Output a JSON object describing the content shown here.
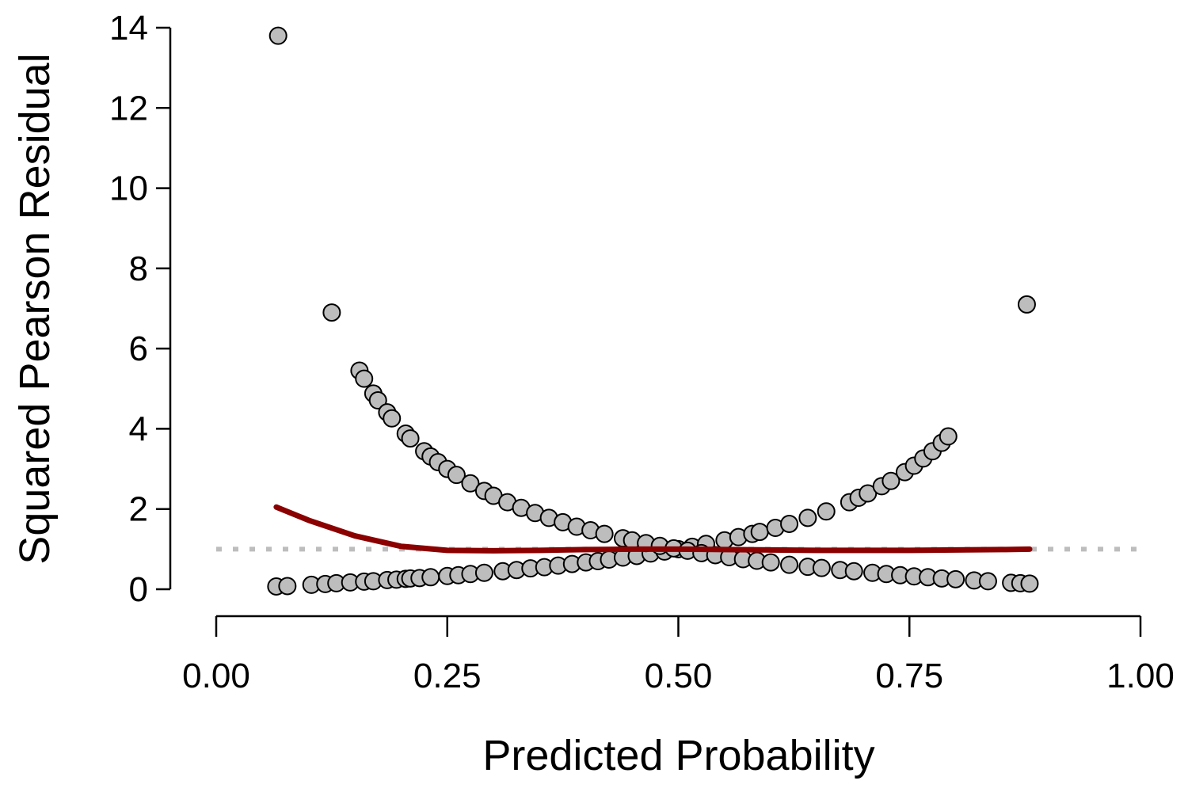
{
  "chart_data": {
    "type": "scatter",
    "xlabel": "Predicted Probability",
    "ylabel": "Squared Pearson Residual",
    "xlim": [
      0,
      1
    ],
    "ylim": [
      0,
      14
    ],
    "x_ticks": [
      "0.00",
      "0.25",
      "0.50",
      "0.75",
      "1.00"
    ],
    "y_ticks": [
      "0",
      "2",
      "4",
      "6",
      "8",
      "10",
      "12",
      "14"
    ],
    "grid": false,
    "reference_line": {
      "y": 1,
      "style": "dotted",
      "color": "#bdbdbd"
    },
    "colors": {
      "point_fill": "#bdbdbd",
      "point_stroke": "#000000",
      "smooth_line": "#8b0000",
      "reference_line": "#bdbdbd"
    },
    "series": [
      {
        "points": [
          [
            0.065,
            0.07
          ],
          [
            0.077,
            0.08
          ],
          [
            0.103,
            0.11
          ],
          [
            0.118,
            0.13
          ],
          [
            0.13,
            0.15
          ],
          [
            0.145,
            0.17
          ],
          [
            0.16,
            0.19
          ],
          [
            0.17,
            0.2
          ],
          [
            0.185,
            0.23
          ],
          [
            0.195,
            0.24
          ],
          [
            0.205,
            0.26
          ],
          [
            0.21,
            0.27
          ],
          [
            0.22,
            0.28
          ],
          [
            0.232,
            0.3
          ],
          [
            0.25,
            0.33
          ],
          [
            0.262,
            0.35
          ],
          [
            0.275,
            0.38
          ],
          [
            0.29,
            0.41
          ],
          [
            0.31,
            0.45
          ],
          [
            0.325,
            0.48
          ],
          [
            0.34,
            0.52
          ],
          [
            0.355,
            0.55
          ],
          [
            0.37,
            0.59
          ],
          [
            0.385,
            0.63
          ],
          [
            0.4,
            0.67
          ],
          [
            0.413,
            0.7
          ],
          [
            0.425,
            0.74
          ],
          [
            0.44,
            0.79
          ],
          [
            0.455,
            0.83
          ],
          [
            0.47,
            0.89
          ],
          [
            0.485,
            0.94
          ],
          [
            0.5,
            1.0
          ],
          [
            0.515,
            1.06
          ],
          [
            0.53,
            1.13
          ],
          [
            0.55,
            1.22
          ],
          [
            0.565,
            1.3
          ],
          [
            0.58,
            1.38
          ],
          [
            0.588,
            1.43
          ],
          [
            0.605,
            1.53
          ],
          [
            0.62,
            1.63
          ],
          [
            0.64,
            1.78
          ],
          [
            0.66,
            1.94
          ],
          [
            0.685,
            2.17
          ],
          [
            0.695,
            2.28
          ],
          [
            0.705,
            2.39
          ],
          [
            0.72,
            2.57
          ],
          [
            0.73,
            2.7
          ],
          [
            0.745,
            2.92
          ],
          [
            0.755,
            3.08
          ],
          [
            0.765,
            3.26
          ],
          [
            0.775,
            3.44
          ],
          [
            0.785,
            3.65
          ],
          [
            0.792,
            3.81
          ],
          [
            0.067,
            13.8
          ],
          [
            0.125,
            6.9
          ],
          [
            0.877,
            7.1
          ],
          [
            0.155,
            5.45
          ],
          [
            0.16,
            5.25
          ],
          [
            0.17,
            4.88
          ],
          [
            0.175,
            4.71
          ],
          [
            0.185,
            4.41
          ],
          [
            0.19,
            4.26
          ],
          [
            0.205,
            3.88
          ],
          [
            0.21,
            3.76
          ],
          [
            0.225,
            3.44
          ],
          [
            0.232,
            3.31
          ],
          [
            0.24,
            3.17
          ],
          [
            0.25,
            3.0
          ],
          [
            0.26,
            2.85
          ],
          [
            0.275,
            2.64
          ],
          [
            0.29,
            2.45
          ],
          [
            0.3,
            2.33
          ],
          [
            0.315,
            2.17
          ],
          [
            0.33,
            2.03
          ],
          [
            0.345,
            1.9
          ],
          [
            0.36,
            1.78
          ],
          [
            0.375,
            1.67
          ],
          [
            0.39,
            1.56
          ],
          [
            0.405,
            1.47
          ],
          [
            0.42,
            1.38
          ],
          [
            0.44,
            1.27
          ],
          [
            0.45,
            1.22
          ],
          [
            0.465,
            1.15
          ],
          [
            0.48,
            1.08
          ],
          [
            0.495,
            1.02
          ],
          [
            0.51,
            0.96
          ],
          [
            0.525,
            0.9
          ],
          [
            0.54,
            0.85
          ],
          [
            0.555,
            0.8
          ],
          [
            0.57,
            0.75
          ],
          [
            0.585,
            0.71
          ],
          [
            0.6,
            0.67
          ],
          [
            0.62,
            0.61
          ],
          [
            0.64,
            0.56
          ],
          [
            0.655,
            0.53
          ],
          [
            0.675,
            0.48
          ],
          [
            0.69,
            0.45
          ],
          [
            0.71,
            0.41
          ],
          [
            0.725,
            0.38
          ],
          [
            0.74,
            0.35
          ],
          [
            0.755,
            0.32
          ],
          [
            0.77,
            0.3
          ],
          [
            0.785,
            0.27
          ],
          [
            0.8,
            0.25
          ],
          [
            0.82,
            0.22
          ],
          [
            0.835,
            0.2
          ],
          [
            0.86,
            0.16
          ],
          [
            0.87,
            0.15
          ],
          [
            0.88,
            0.14
          ]
        ]
      }
    ],
    "smooth_curve": {
      "x": [
        0.065,
        0.1,
        0.15,
        0.2,
        0.25,
        0.3,
        0.35,
        0.4,
        0.45,
        0.5,
        0.55,
        0.6,
        0.65,
        0.7,
        0.75,
        0.8,
        0.85,
        0.88
      ],
      "y": [
        2.05,
        1.72,
        1.33,
        1.07,
        0.97,
        0.96,
        0.97,
        0.99,
        1.0,
        1.0,
        0.99,
        0.98,
        0.97,
        0.97,
        0.97,
        0.98,
        0.99,
        1.0
      ]
    }
  }
}
